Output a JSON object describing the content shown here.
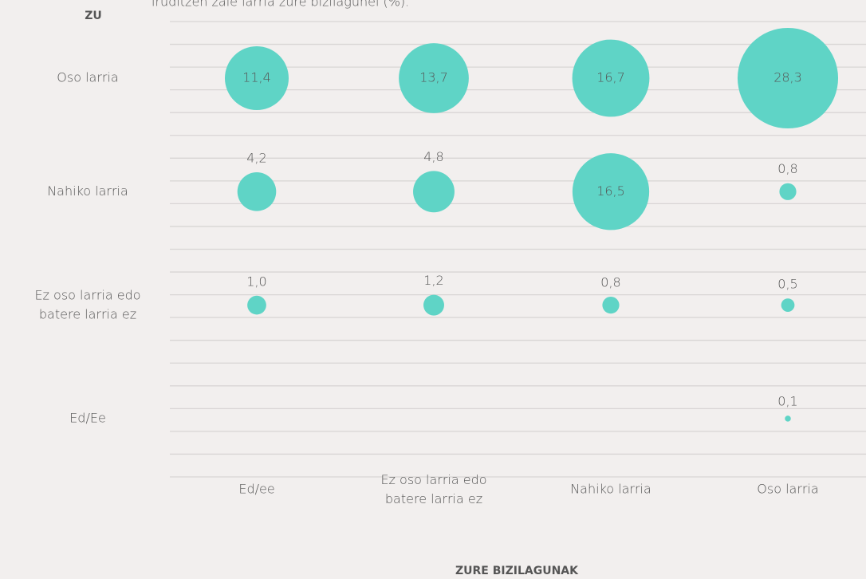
{
  "chart_data": {
    "type": "bubble",
    "subtitle": "iruditzen zaie larria zure bizilagunei (%).",
    "y_axis_label": "ZU",
    "x_axis_label": "ZURE BIZILAGUNAK",
    "categories": [
      "Ed/ee",
      "Ez oso larria edo\nbatere larria ez",
      "Nahiko larria",
      "Oso larria"
    ],
    "y_categories": [
      "Oso larria",
      "Nahiko larria",
      "Ez oso larria edo\nbatere larria ez",
      "Ed/Ee"
    ],
    "color": "#5fd4c6",
    "values": [
      [
        11.4,
        13.7,
        16.7,
        28.3
      ],
      [
        4.2,
        4.8,
        16.5,
        0.8
      ],
      [
        1.0,
        1.2,
        0.8,
        0.5
      ],
      [
        null,
        null,
        null,
        0.1
      ]
    ],
    "value_labels": [
      [
        "11,4",
        "13,7",
        "16,7",
        "28,3"
      ],
      [
        "4,2",
        "4,8",
        "16,5",
        "0,8"
      ],
      [
        "1,0",
        "1,2",
        "0,8",
        "0,5"
      ],
      [
        null,
        null,
        null,
        "0,1"
      ]
    ]
  }
}
